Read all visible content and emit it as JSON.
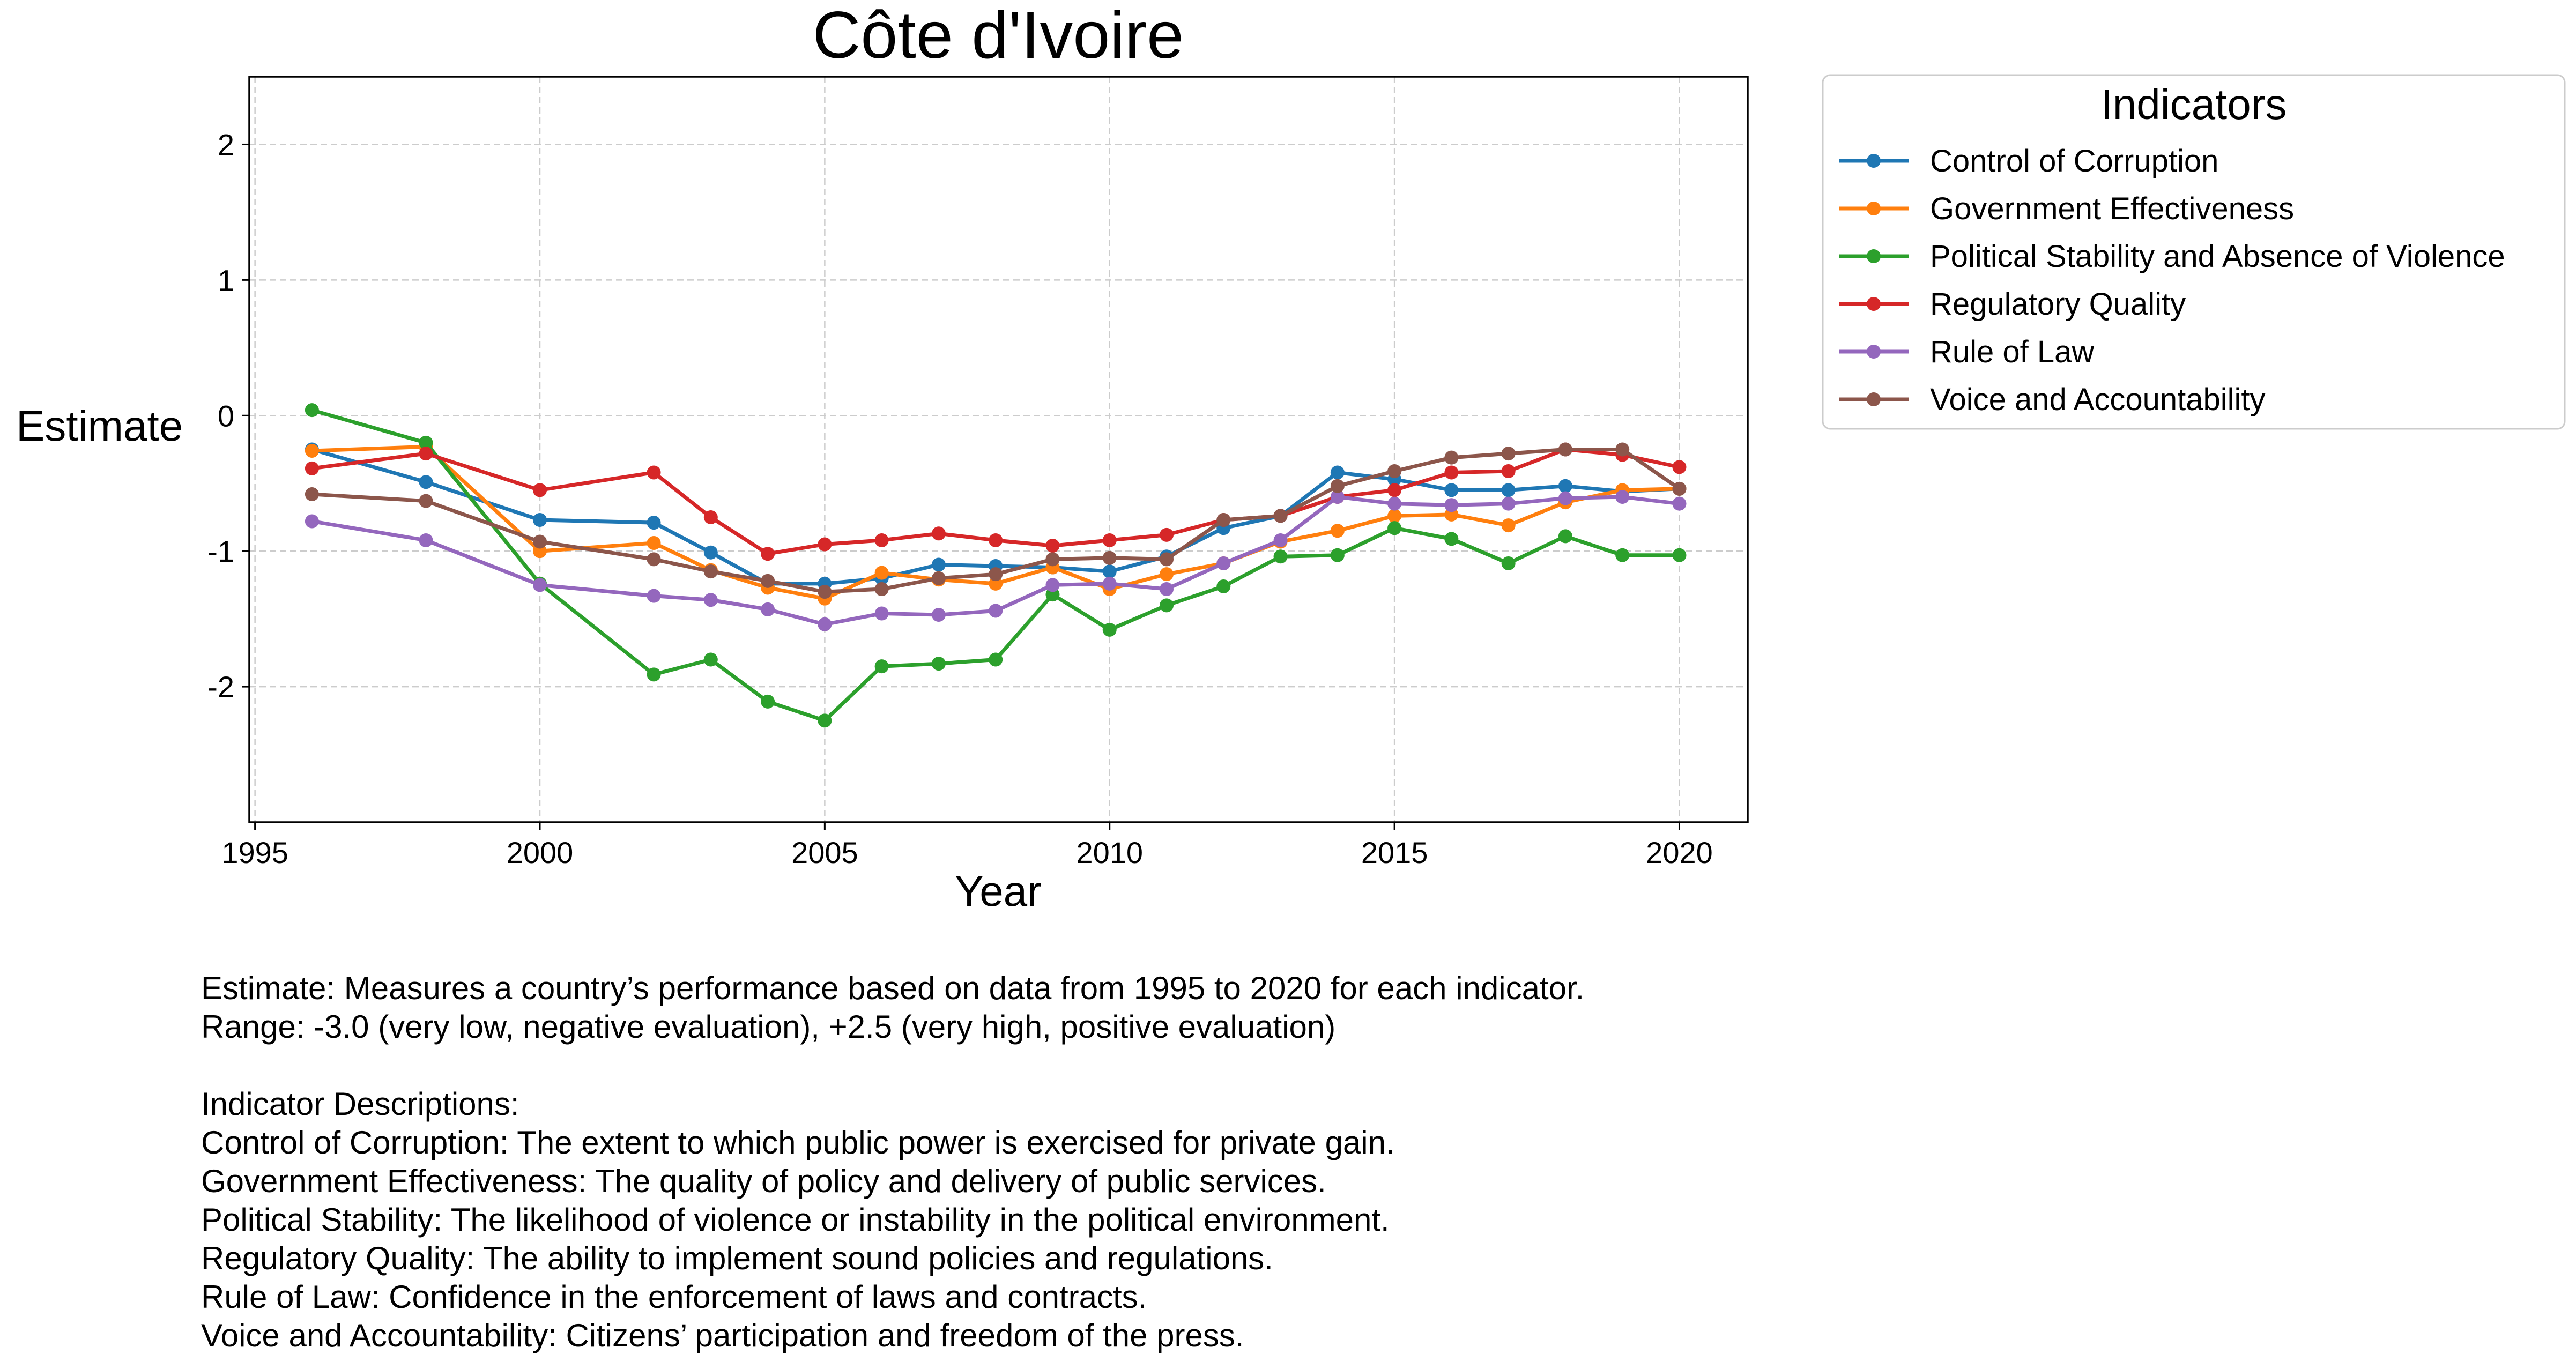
{
  "chart_data": {
    "type": "line",
    "title": "Côte d'Ivoire",
    "xlabel": "Year",
    "ylabel": "Estimate",
    "xlim": [
      1994.9,
      2021.2
    ],
    "ylim": [
      -3.0,
      2.5
    ],
    "xticks": [
      1995,
      2000,
      2005,
      2010,
      2015,
      2020
    ],
    "yticks": [
      -2,
      -1,
      0,
      1,
      2
    ],
    "grid": true,
    "legend": {
      "title": "Indicators",
      "placement": "outside-right-top"
    },
    "x": [
      1996,
      1998,
      2000,
      2002,
      2003,
      2004,
      2005,
      2006,
      2007,
      2008,
      2009,
      2010,
      2011,
      2012,
      2013,
      2014,
      2015,
      2016,
      2017,
      2018,
      2019,
      2020
    ],
    "series": [
      {
        "name": "Control of Corruption",
        "color": "#1f77b4",
        "values": [
          -0.25,
          -0.49,
          -0.77,
          -0.79,
          -1.01,
          -1.24,
          -1.24,
          -1.2,
          -1.1,
          -1.11,
          -1.12,
          -1.15,
          -1.04,
          -0.83,
          -0.74,
          -0.42,
          -0.47,
          -0.55,
          -0.55,
          -0.52,
          -0.56,
          -0.54
        ]
      },
      {
        "name": "Government Effectiveness",
        "color": "#ff7f0e",
        "values": [
          -0.26,
          -0.23,
          -1.0,
          -0.94,
          -1.14,
          -1.27,
          -1.35,
          -1.16,
          -1.21,
          -1.24,
          -1.12,
          -1.28,
          -1.17,
          -1.09,
          -0.93,
          -0.85,
          -0.74,
          -0.73,
          -0.81,
          -0.64,
          -0.55,
          -0.54
        ]
      },
      {
        "name": "Political Stability and Absence of Violence",
        "color": "#2ca02c",
        "values": [
          0.04,
          -0.2,
          -1.24,
          -1.91,
          -1.8,
          -2.11,
          -2.25,
          -1.85,
          -1.83,
          -1.8,
          -1.32,
          -1.58,
          -1.4,
          -1.26,
          -1.04,
          -1.03,
          -0.83,
          -0.91,
          -1.09,
          -0.89,
          -1.03,
          -1.03
        ]
      },
      {
        "name": "Regulatory Quality",
        "color": "#d62728",
        "values": [
          -0.39,
          -0.28,
          -0.55,
          -0.42,
          -0.75,
          -1.02,
          -0.95,
          -0.92,
          -0.87,
          -0.92,
          -0.96,
          -0.92,
          -0.88,
          -0.77,
          -0.74,
          -0.6,
          -0.55,
          -0.42,
          -0.41,
          -0.25,
          -0.29,
          -0.38
        ]
      },
      {
        "name": "Rule of Law",
        "color": "#9467bd",
        "values": [
          -0.78,
          -0.92,
          -1.25,
          -1.33,
          -1.36,
          -1.43,
          -1.54,
          -1.46,
          -1.47,
          -1.44,
          -1.25,
          -1.24,
          -1.28,
          -1.09,
          -0.92,
          -0.6,
          -0.65,
          -0.66,
          -0.65,
          -0.61,
          -0.6,
          -0.65
        ]
      },
      {
        "name": "Voice and Accountability",
        "color": "#8c564b",
        "values": [
          -0.58,
          -0.63,
          -0.93,
          -1.06,
          -1.15,
          -1.22,
          -1.3,
          -1.28,
          -1.2,
          -1.17,
          -1.06,
          -1.05,
          -1.06,
          -0.77,
          -0.74,
          -0.52,
          -0.41,
          -0.31,
          -0.28,
          -0.25,
          -0.25,
          -0.54
        ]
      }
    ]
  },
  "notes": {
    "line1": "Estimate: Measures a country’s performance based on data from 1995 to 2020 for each indicator.",
    "line2": "Range: -3.0 (very low, negative evaluation), +2.5 (very high, positive evaluation)",
    "heading": "Indicator Descriptions:",
    "descriptions": [
      "Control of Corruption: The extent to which public power is exercised for private gain.",
      "Government Effectiveness: The quality of policy and delivery of public services.",
      "Political Stability: The likelihood of violence or instability in the political environment.",
      "Regulatory Quality: The ability to implement sound policies and regulations.",
      "Rule of Law: Confidence in the enforcement of laws and contracts.",
      "Voice and Accountability: Citizens’ participation and freedom of the press."
    ]
  }
}
